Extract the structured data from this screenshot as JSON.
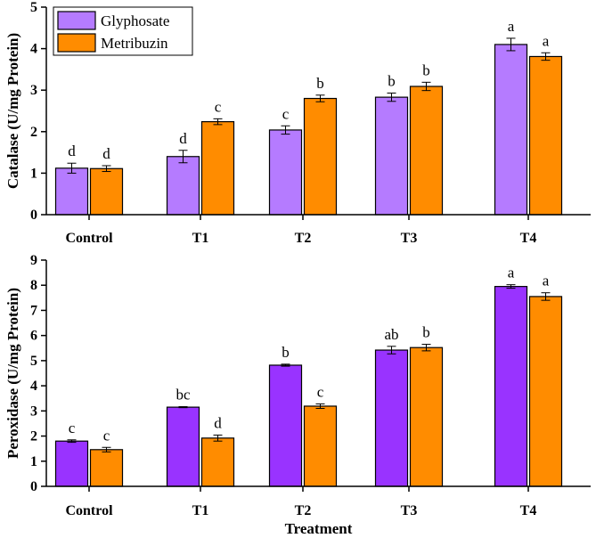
{
  "chart_data": [
    {
      "type": "bar",
      "categories": [
        "Control",
        "T1",
        "T2",
        "T3",
        "T4"
      ],
      "series": [
        {
          "name": "Glyphosate",
          "values": [
            1.12,
            1.4,
            2.04,
            2.83,
            4.1
          ],
          "errors": [
            0.12,
            0.15,
            0.1,
            0.1,
            0.15
          ],
          "letters": [
            "d",
            "d",
            "c",
            "b",
            "a"
          ]
        },
        {
          "name": "Metribuzin",
          "values": [
            1.11,
            2.24,
            2.8,
            3.09,
            3.81
          ],
          "errors": [
            0.07,
            0.07,
            0.08,
            0.1,
            0.09
          ],
          "letters": [
            "d",
            "c",
            "b",
            "b",
            "a"
          ]
        }
      ],
      "ylabel": "Catalase (U/mg Protein)",
      "xlabel": "",
      "ylim": [
        0,
        5
      ],
      "yticks": [
        "0",
        "1",
        "2",
        "3",
        "4",
        "5"
      ],
      "legend": "top-left"
    },
    {
      "type": "bar",
      "categories": [
        "Control",
        "T1",
        "T2",
        "T3",
        "T4"
      ],
      "series": [
        {
          "name": "Glyphosate",
          "values": [
            1.8,
            3.15,
            4.82,
            5.42,
            7.95
          ],
          "errors": [
            0.05,
            0.02,
            0.04,
            0.15,
            0.07
          ],
          "letters": [
            "c",
            "bc",
            "b",
            "ab",
            "a"
          ]
        },
        {
          "name": "Metribuzin",
          "values": [
            1.46,
            1.92,
            3.19,
            5.52,
            7.55
          ],
          "errors": [
            0.09,
            0.12,
            0.09,
            0.13,
            0.15
          ],
          "letters": [
            "c",
            "d",
            "c",
            "b",
            "a"
          ]
        }
      ],
      "ylabel": "Peroxidase (U/mg Protein)",
      "xlabel": "Treatment",
      "ylim": [
        0,
        9
      ],
      "yticks": [
        "0",
        "1",
        "2",
        "3",
        "4",
        "5",
        "6",
        "7",
        "8",
        "9"
      ]
    }
  ],
  "colors": {
    "top_glyphosate": "#b57bff",
    "top_metribuzin": "#ff8c00",
    "bottom_glyphosate": "#9933ff",
    "bottom_metribuzin": "#ff8c00"
  }
}
